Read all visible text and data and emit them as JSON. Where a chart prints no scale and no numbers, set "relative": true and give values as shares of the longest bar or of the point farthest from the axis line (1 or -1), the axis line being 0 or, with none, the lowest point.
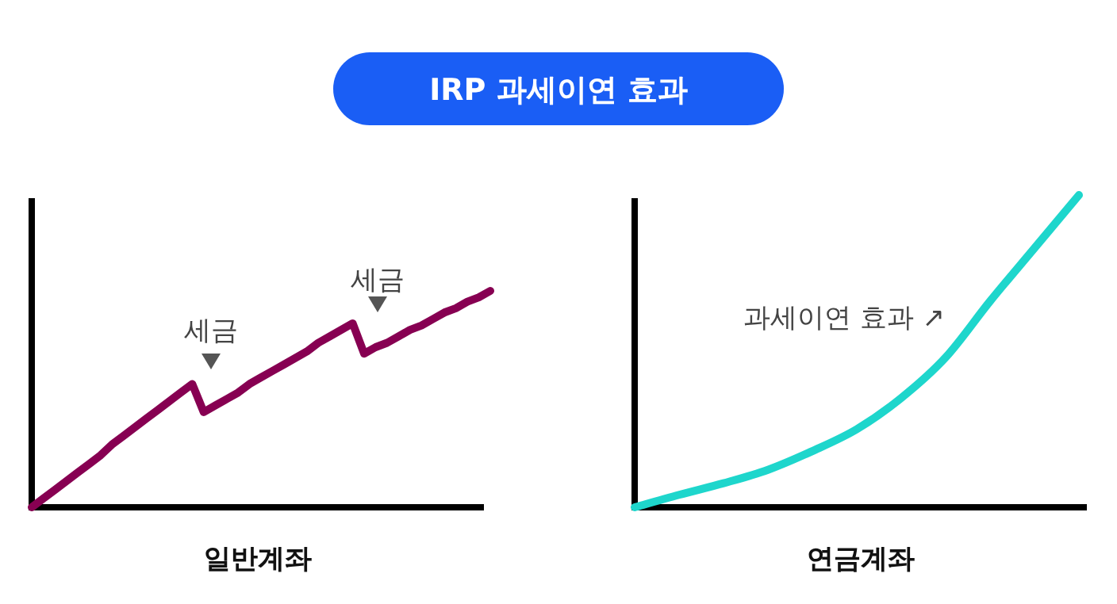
{
  "chart_data": [
    {
      "type": "line",
      "title": "IRP 과세이연 효과",
      "xlabel": "일반계좌",
      "relative": true,
      "tick_labels": false,
      "line_style": "solid",
      "categories": [
        null,
        null,
        null,
        null,
        null,
        null,
        null,
        null,
        null,
        null,
        null,
        null,
        null,
        null,
        null,
        null,
        null,
        null,
        null,
        null,
        null,
        null,
        null,
        null,
        null,
        null,
        null,
        null,
        null,
        null,
        null,
        null,
        null,
        null,
        null,
        null,
        null,
        null,
        null,
        null,
        null
      ],
      "series": [
        {
          "color": "#870052",
          "values": [
            0,
            0.04,
            0.08,
            0.12,
            0.16,
            0.2,
            0.24,
            0.29,
            0.33,
            0.37,
            0.41,
            0.45,
            0.49,
            0.53,
            0.57,
            0.44,
            0.47,
            0.5,
            0.53,
            0.57,
            0.6,
            0.63,
            0.66,
            0.69,
            0.72,
            0.76,
            0.79,
            0.82,
            0.85,
            0.71,
            0.74,
            0.76,
            0.79,
            0.82,
            0.84,
            0.87,
            0.9,
            0.92,
            0.95,
            0.97,
            1.0
          ]
        }
      ],
      "annotations": [
        "세금",
        "세금"
      ]
    },
    {
      "type": "line",
      "xlabel": "연금계좌",
      "relative": true,
      "tick_labels": false,
      "line_style": "solid",
      "categories": [
        null,
        null,
        null,
        null,
        null,
        null,
        null,
        null,
        null,
        null,
        null
      ],
      "series": [
        {
          "color": "#1ed6cc",
          "values": [
            0,
            0.04,
            0.077,
            0.12,
            0.18,
            0.25,
            0.35,
            0.48,
            0.66,
            0.83,
            1.0
          ]
        }
      ],
      "annotations": [
        "과세이연 효과 ↗"
      ]
    }
  ]
}
